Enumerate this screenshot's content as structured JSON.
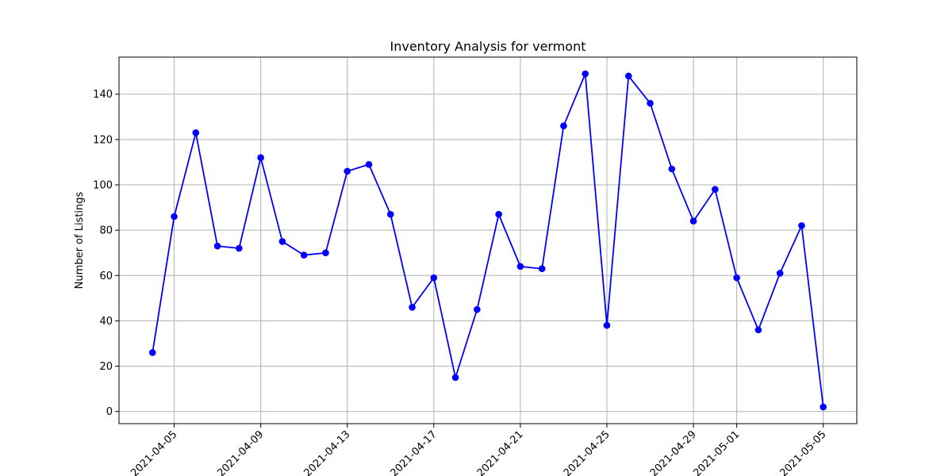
{
  "chart_data": {
    "type": "line",
    "title": "Inventory Analysis for vermont",
    "xlabel": "",
    "ylabel": "Number of Listings",
    "x": [
      "2021-04-04",
      "2021-04-05",
      "2021-04-06",
      "2021-04-07",
      "2021-04-08",
      "2021-04-09",
      "2021-04-10",
      "2021-04-11",
      "2021-04-12",
      "2021-04-13",
      "2021-04-14",
      "2021-04-15",
      "2021-04-16",
      "2021-04-17",
      "2021-04-18",
      "2021-04-19",
      "2021-04-20",
      "2021-04-21",
      "2021-04-22",
      "2021-04-23",
      "2021-04-24",
      "2021-04-25",
      "2021-04-26",
      "2021-04-27",
      "2021-04-28",
      "2021-04-29",
      "2021-04-30",
      "2021-05-01",
      "2021-05-02",
      "2021-05-03",
      "2021-05-04",
      "2021-05-05"
    ],
    "series": [
      {
        "values": [
          26,
          86,
          123,
          73,
          72,
          112,
          75,
          69,
          70,
          106,
          109,
          87,
          46,
          59,
          15,
          45,
          87,
          64,
          63,
          126,
          149,
          38,
          148,
          136,
          107,
          84,
          98,
          59,
          36,
          61,
          82,
          2
        ],
        "color": "#0000ff",
        "marker": "circle"
      }
    ],
    "xticks": [
      "2021-04-05",
      "2021-04-09",
      "2021-04-13",
      "2021-04-17",
      "2021-04-21",
      "2021-04-25",
      "2021-04-29",
      "2021-05-01",
      "2021-05-05"
    ],
    "yticks": [
      0,
      20,
      40,
      60,
      80,
      100,
      120,
      140
    ],
    "ylim": [
      -5.35,
      156.35
    ],
    "xlim": [
      "2021-04-02T10:48",
      "2021-05-06T13:12"
    ],
    "grid": true,
    "xtick_rotation": 45
  }
}
